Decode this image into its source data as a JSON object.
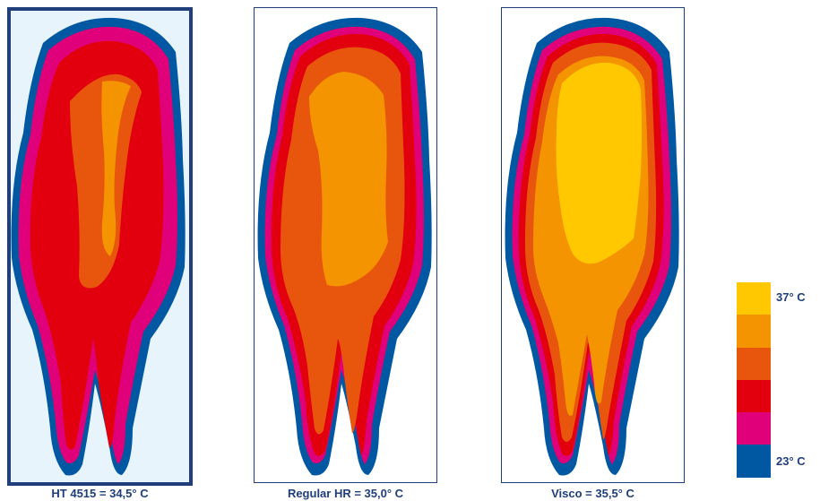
{
  "panels": [
    {
      "caption": "HT 4515 = 34,5° C",
      "level": 0
    },
    {
      "caption": "Regular HR = 35,0° C",
      "level": 1
    },
    {
      "caption": "Visco = 35,5° C",
      "level": 2
    }
  ],
  "legend": {
    "top_label": "37° C",
    "bottom_label": "23° C",
    "colors": [
      "#ffc800",
      "#f49400",
      "#e8560d",
      "#e2000f",
      "#e0007a",
      "#0058a3"
    ]
  },
  "colors": {
    "frame": "#1f3e7a",
    "highlighted_panel_background": "#e7f4fc",
    "caption_text": "#1f3e7a"
  }
}
